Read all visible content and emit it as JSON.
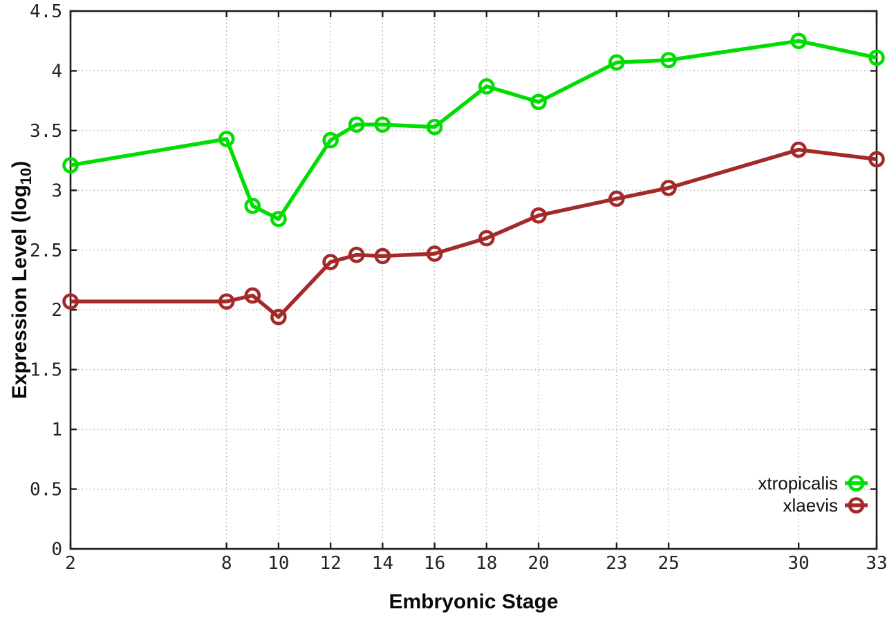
{
  "chart_data": {
    "type": "line",
    "title": "",
    "xlabel": "Embryonic Stage",
    "ylabel": "Expression Level (log10)",
    "ylabel_prefix": "Expression Level (log",
    "ylabel_sub": "10",
    "ylabel_suffix": ")",
    "x": [
      2,
      8,
      9,
      10,
      12,
      13,
      14,
      16,
      18,
      20,
      23,
      25,
      30,
      33
    ],
    "series": [
      {
        "name": "xtropicalis",
        "color": "#00dd00",
        "values": [
          3.21,
          3.43,
          2.87,
          2.76,
          3.42,
          3.55,
          3.55,
          3.53,
          3.87,
          3.74,
          4.07,
          4.09,
          4.25,
          4.11
        ]
      },
      {
        "name": "xlaevis",
        "color": "#a42a2a",
        "values": [
          2.07,
          2.07,
          2.12,
          1.94,
          2.4,
          2.46,
          2.45,
          2.47,
          2.6,
          2.79,
          2.93,
          3.02,
          3.34,
          3.26
        ]
      }
    ],
    "xtick_values": [
      2,
      8,
      10,
      12,
      14,
      16,
      18,
      20,
      23,
      25,
      30,
      33
    ],
    "xtick_labels": [
      "2",
      "8",
      "10",
      "12",
      "14",
      "16",
      "18",
      "20",
      "23",
      "25",
      "30",
      "33"
    ],
    "ytick_values": [
      0,
      0.5,
      1,
      1.5,
      2,
      2.5,
      3,
      3.5,
      4,
      4.5
    ],
    "ytick_labels": [
      "0",
      "0.5",
      "1",
      "1.5",
      "2",
      "2.5",
      "3",
      "3.5",
      "4",
      "4.5"
    ],
    "xlim": [
      2,
      33
    ],
    "ylim": [
      0,
      4.5
    ],
    "grid": true,
    "legend_position": "bottom-right",
    "colors": {
      "border": "#1c1c1c",
      "grid": "#aaaaaa",
      "background": "#ffffff",
      "text": "#111111"
    }
  }
}
